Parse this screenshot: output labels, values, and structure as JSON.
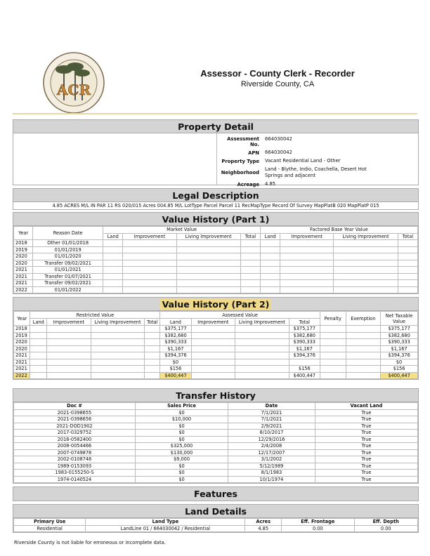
{
  "header": {
    "title": "Assessor - County Clerk - Recorder",
    "subtitle": "Riverside County, CA",
    "logo_text": "COUNTY OF RIVERSIDE · ASSESSOR · COUNTY CLERK · RECORDER · ACR"
  },
  "property_detail": {
    "title": "Property Detail",
    "fields": [
      {
        "label": "Assessment No.",
        "value": "664030042"
      },
      {
        "label": "APN",
        "value": "664030042"
      },
      {
        "label": "Property Type",
        "value": "Vacant Residential Land - Other"
      },
      {
        "label": "Neighborhood",
        "value": "Land - Blythe, Indio, Coachella, Desert Hot Springs and adjacent"
      },
      {
        "label": "Acreage",
        "value": "4.85"
      }
    ]
  },
  "legal": {
    "title": "Legal Description",
    "text": "4.85 ACRES M/L IN PAR 11 RS 020/015 Acres 004.85 M/L LotType Parcel Parcel 11 RecMapType Record Of Survey MapPlatB 020 MapPlatP 015"
  },
  "vh1": {
    "title": "Value History (Part 1)",
    "col_year": "Year",
    "col_reason": "Reason Date",
    "group_market": "Market Value",
    "group_factored": "Factored Base Year Value",
    "sub": [
      "Land",
      "Improvement",
      "Living Improvement",
      "Total",
      "Land",
      "Improvement",
      "Living Improvement",
      "Total"
    ],
    "rows": [
      [
        "2018",
        "Other 01/01/2018"
      ],
      [
        "2019",
        "01/01/2019"
      ],
      [
        "2020",
        "01/01/2020"
      ],
      [
        "2020",
        "Transfer 09/02/2021"
      ],
      [
        "2021",
        "01/01/2021"
      ],
      [
        "2021",
        "Transfer 01/07/2021"
      ],
      [
        "2021",
        "Transfer 09/02/2021"
      ],
      [
        "2022",
        "01/01/2022"
      ]
    ]
  },
  "vh2": {
    "title": "Value History (Part 2)",
    "col_year": "Year",
    "group_restricted": "Restricted Value",
    "group_assessed": "Assessed Value",
    "col_penalty": "Penalty",
    "col_exemption": "Exemption",
    "col_net": "Net Taxable Value",
    "sub": [
      "Land",
      "Improvement",
      "Living Improvement",
      "Total",
      "Land",
      "Improvement",
      "Living Improvement",
      "Total"
    ],
    "rows": [
      {
        "year": "2018",
        "land": "$375,177",
        "total": "$375,177",
        "net": "$375,177"
      },
      {
        "year": "2019",
        "land": "$382,680",
        "total": "$382,680",
        "net": "$382,680"
      },
      {
        "year": "2020",
        "land": "$390,333",
        "total": "$390,333",
        "net": "$390,333"
      },
      {
        "year": "2020",
        "land": "$1,167",
        "total": "$1,167",
        "net": "$1,167"
      },
      {
        "year": "2021",
        "land": "$394,376",
        "total": "$394,376",
        "net": "$394,376"
      },
      {
        "year": "2021",
        "land": "$0",
        "total": "",
        "net": "$0"
      },
      {
        "year": "2021",
        "land": "$156",
        "total": "$156",
        "net": "$156"
      },
      {
        "year": "2022",
        "land": "$400,447",
        "total": "$400,447",
        "net": "$400,447",
        "highlight": true
      }
    ],
    "highlight_color": "#f5e08a"
  },
  "transfer": {
    "title": "Transfer History",
    "columns": [
      "Doc #",
      "Sales Price",
      "Date",
      "Vacant Land"
    ],
    "rows": [
      [
        "2021-0398655",
        "$0",
        "7/1/2021",
        "True"
      ],
      [
        "2021-0398656",
        "$10,000",
        "7/1/2021",
        "True"
      ],
      [
        "2021-DOD1902",
        "$0",
        "2/9/2021",
        "True"
      ],
      [
        "2017-0329752",
        "$0",
        "8/10/2017",
        "True"
      ],
      [
        "2016-0582400",
        "$0",
        "12/29/2016",
        "True"
      ],
      [
        "2008-0054466",
        "$325,000",
        "2/4/2008",
        "True"
      ],
      [
        "2007-0749878",
        "$130,000",
        "12/17/2007",
        "True"
      ],
      [
        "2002-0108748",
        "$9,000",
        "3/1/2002",
        "True"
      ],
      [
        "1989-0153093",
        "$0",
        "5/12/1989",
        "True"
      ],
      [
        "1983-0155250-S",
        "$0",
        "8/1/1983",
        "True"
      ],
      [
        "1974-0140524",
        "$0",
        "10/1/1974",
        "True"
      ]
    ]
  },
  "features": {
    "title": "Features"
  },
  "land": {
    "title": "Land Details",
    "columns": [
      "Primary Use",
      "Land Type",
      "Acres",
      "Eff. Frontage",
      "Eff. Depth"
    ],
    "rows": [
      [
        "Residential",
        "LandLine 01 / 664030042 / Residential",
        "4.85",
        "0.00",
        "0.00"
      ]
    ]
  },
  "disclaimer": "Riverside County is not liable for erroneous or incomplete data."
}
